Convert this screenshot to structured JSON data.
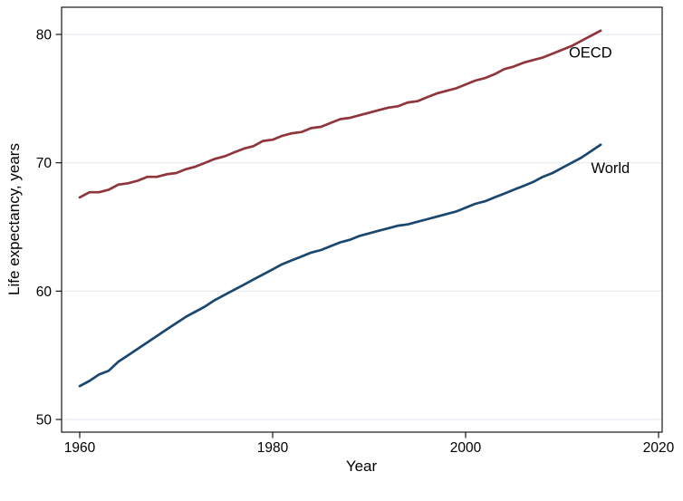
{
  "chart_data": {
    "type": "line",
    "title": "",
    "xlabel": "Year",
    "ylabel": "Life expectancy, years",
    "x_ticks": [
      1960,
      1980,
      2000,
      2020
    ],
    "y_ticks": [
      50,
      60,
      70,
      80
    ],
    "xlim": [
      1958,
      2020.5
    ],
    "ylim": [
      49,
      82
    ],
    "grid": "horizontal-at-y-ticks",
    "legend": "inline-line-labels",
    "colors": {
      "oecd_line": "#90353B",
      "world_line": "#1A476F",
      "gridline": "#e4ebf1",
      "axis_box": "#000000",
      "text": "#000000",
      "background": "#ffffff"
    },
    "x": [
      1960,
      1961,
      1962,
      1963,
      1964,
      1965,
      1966,
      1967,
      1968,
      1969,
      1970,
      1971,
      1972,
      1973,
      1974,
      1975,
      1976,
      1977,
      1978,
      1979,
      1980,
      1981,
      1982,
      1983,
      1984,
      1985,
      1986,
      1987,
      1988,
      1989,
      1990,
      1991,
      1992,
      1993,
      1994,
      1995,
      1996,
      1997,
      1998,
      1999,
      2000,
      2001,
      2002,
      2003,
      2004,
      2005,
      2006,
      2007,
      2008,
      2009,
      2010,
      2011,
      2012,
      2013,
      2014
    ],
    "series": [
      {
        "name": "OECD",
        "color": "#90353B",
        "values": [
          67.3,
          67.7,
          67.7,
          67.9,
          68.3,
          68.4,
          68.6,
          68.9,
          68.9,
          69.1,
          69.2,
          69.5,
          69.7,
          70.0,
          70.3,
          70.5,
          70.8,
          71.1,
          71.3,
          71.7,
          71.8,
          72.1,
          72.3,
          72.4,
          72.7,
          72.8,
          73.1,
          73.4,
          73.5,
          73.7,
          73.9,
          74.1,
          74.3,
          74.4,
          74.7,
          74.8,
          75.1,
          75.4,
          75.6,
          75.8,
          76.1,
          76.4,
          76.6,
          76.9,
          77.3,
          77.5,
          77.8,
          78.0,
          78.2,
          78.5,
          78.8,
          79.1,
          79.5,
          79.9,
          80.3
        ]
      },
      {
        "name": "World",
        "color": "#1A476F",
        "values": [
          52.6,
          53.0,
          53.5,
          53.8,
          54.5,
          55.0,
          55.5,
          56.0,
          56.5,
          57.0,
          57.5,
          58.0,
          58.4,
          58.8,
          59.3,
          59.7,
          60.1,
          60.5,
          60.9,
          61.3,
          61.7,
          62.1,
          62.4,
          62.7,
          63.0,
          63.2,
          63.5,
          63.8,
          64.0,
          64.3,
          64.5,
          64.7,
          64.9,
          65.1,
          65.2,
          65.4,
          65.6,
          65.8,
          66.0,
          66.2,
          66.5,
          66.8,
          67.0,
          67.3,
          67.6,
          67.9,
          68.2,
          68.5,
          68.9,
          69.2,
          69.6,
          70.0,
          70.4,
          70.9,
          71.4
        ]
      }
    ],
    "annotations": [
      {
        "text": "OECD",
        "x": 2010.7,
        "y": 78.6
      },
      {
        "text": "World",
        "x": 2013.0,
        "y": 69.6
      }
    ]
  }
}
